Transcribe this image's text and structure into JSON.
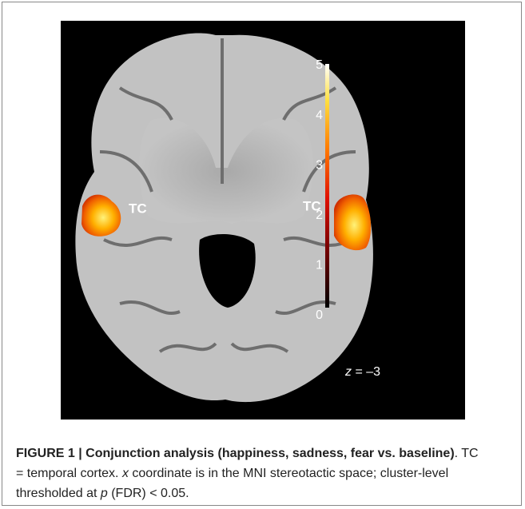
{
  "figure": {
    "labels": [
      "TC",
      "TC"
    ],
    "slice": {
      "axis": "z",
      "value": " = –3"
    },
    "colorbar": {
      "ticks": [
        0,
        1,
        2,
        3,
        4,
        5
      ],
      "range": [
        0,
        5
      ]
    },
    "caption": {
      "label": "FIGURE 1 | Conjunction analysis (happiness, sadness, fear vs. baseline)",
      "parts": [
        ". TC = temporal cortex. ",
        "x",
        " coordinate is in the MNI stereotactic space; cluster-level thresholded at ",
        "p",
        " (FDR) < 0.05."
      ]
    }
  }
}
